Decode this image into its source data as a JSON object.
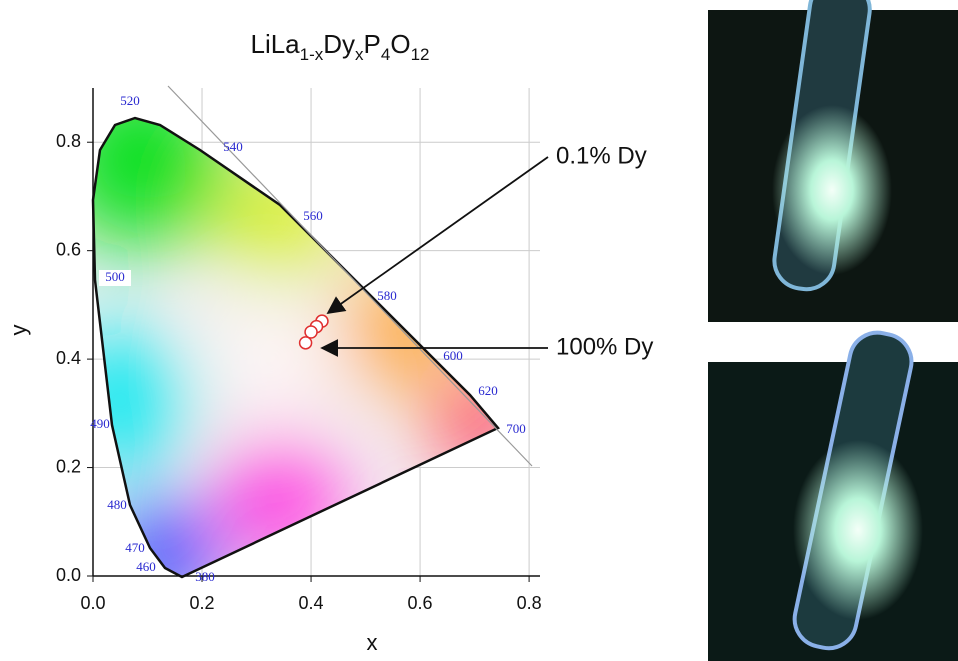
{
  "chart_data": {
    "type": "scatter",
    "title": [
      "LiLa",
      "1-x",
      "Dy",
      "x",
      "P",
      "4",
      "O",
      "12"
    ],
    "x_label": "x",
    "y_label": "y",
    "x": [
      0.42,
      0.41,
      0.4,
      0.39
    ],
    "values": [
      0.47,
      0.46,
      0.45,
      0.43
    ],
    "color": "#e03030",
    "xlim": [
      0,
      0.82
    ],
    "ylim": [
      0,
      0.9
    ],
    "xticks": [
      {
        "value": 0,
        "label": "0.0"
      },
      0.2,
      0.4,
      0.6,
      0.8
    ],
    "yticks": [
      {
        "value": 0,
        "label": "0.0"
      },
      0.2,
      0.4,
      0.6,
      0.8
    ],
    "grid": true,
    "wavelength_labels": [
      "520",
      "540",
      "560",
      "580",
      "600",
      "620",
      "700",
      "500",
      "490",
      "480",
      "470",
      "460",
      "380"
    ],
    "annotations": [
      "0.1% Dy",
      "100% Dy"
    ]
  }
}
